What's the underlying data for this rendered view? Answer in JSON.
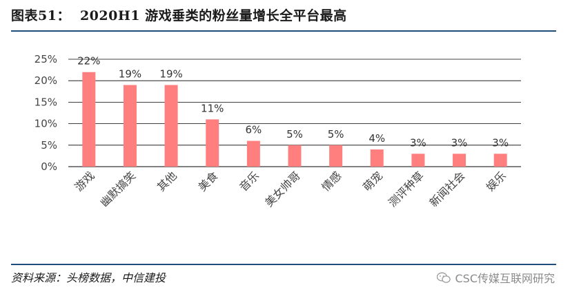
{
  "header": {
    "figure_no": "图表51：",
    "title": "2020H1 游戏垂类的粉丝量增长全平台最高"
  },
  "footer": {
    "source": "资料来源：头榜数据，中信建投",
    "watermark": "CSC传媒互联网研究",
    "watermark_icon": "wechat-icon"
  },
  "colors": {
    "bar": "#ff7f7f",
    "rule": "#1f4e79",
    "grid": "#000000"
  },
  "chart_data": {
    "type": "bar",
    "title": "",
    "xlabel": "",
    "ylabel": "",
    "categories": [
      "游戏",
      "幽默搞笑",
      "其他",
      "美食",
      "音乐",
      "美女帅哥",
      "情感",
      "萌宠",
      "测评种草",
      "新闻社会",
      "娱乐"
    ],
    "values": [
      22,
      19,
      19,
      11,
      6,
      5,
      5,
      4,
      3,
      3,
      3
    ],
    "value_labels": [
      "22%",
      "19%",
      "19%",
      "11%",
      "6%",
      "5%",
      "5%",
      "4%",
      "3%",
      "3%",
      "3%"
    ],
    "yticks": [
      "0%",
      "5%",
      "10%",
      "15%",
      "20%",
      "25%"
    ],
    "ylim": [
      0,
      25
    ],
    "grid": true,
    "legend": "none"
  }
}
